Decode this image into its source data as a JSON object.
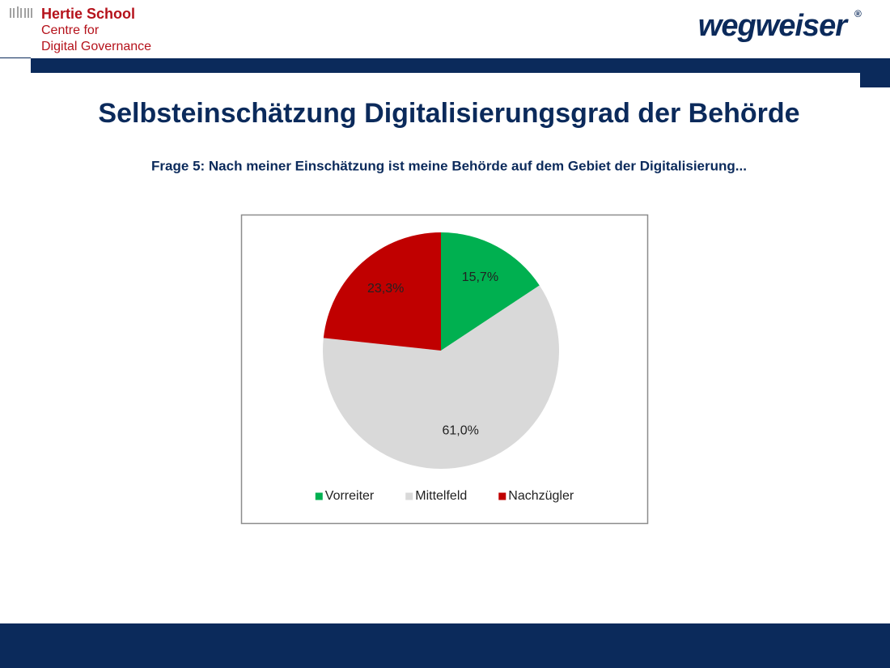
{
  "header": {
    "logo_line1": "Hertie School",
    "logo_line2": "Centre for",
    "logo_line3": "Digital Governance",
    "brand": "wegweiser",
    "brand_mark": "®"
  },
  "chart_data": {
    "type": "pie",
    "title": "Selbsteinschätzung Digitalisierungsgrad der Behörde",
    "subtitle": "Frage 5: Nach meiner Einschätzung ist meine Behörde auf dem Gebiet der Digitalisierung...",
    "categories": [
      "Vorreiter",
      "Mittelfeld",
      "Nachzügler"
    ],
    "values": [
      15.7,
      61.0,
      23.3
    ],
    "value_labels": [
      "15,7%",
      "61,0%",
      "23,3%"
    ],
    "colors": [
      "#00b050",
      "#d9d9d9",
      "#c00000"
    ],
    "legend": "bottom"
  }
}
